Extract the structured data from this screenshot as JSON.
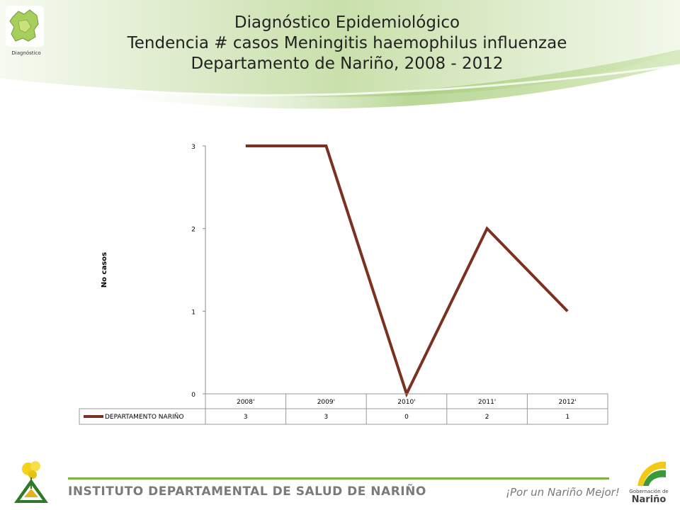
{
  "header": {
    "logo_caption": "Diagnóstico",
    "title_lines": [
      "Diagnóstico Epidemiológico",
      "Tendencia # casos Meningitis haemophilus  influenzae",
      "Departamento de Nariño,  2008 - 2012"
    ]
  },
  "chart_data": {
    "type": "line",
    "ylabel": "No casos",
    "categories": [
      "2008'",
      "2009'",
      "2010'",
      "2011'",
      "2012'"
    ],
    "ylim": [
      0,
      3
    ],
    "yticks": [
      0,
      1,
      2,
      3
    ],
    "series": [
      {
        "name": "DEPARTAMENTO NARIÑO",
        "values": [
          3,
          3,
          0,
          2,
          1
        ],
        "color": "#7b3020"
      }
    ],
    "data_table": true,
    "grid": false
  },
  "footer": {
    "institute": "INSTITUTO DEPARTAMENTAL DE SALUD DE NARIÑO",
    "slogan": "¡Por un Nariño Mejor!",
    "gob_small": "Gobernación de",
    "gob_big": "Nariño"
  },
  "colors": {
    "banner_green": "#a9cd7a",
    "accent_green": "#7fb340",
    "series": "#7b3020"
  }
}
